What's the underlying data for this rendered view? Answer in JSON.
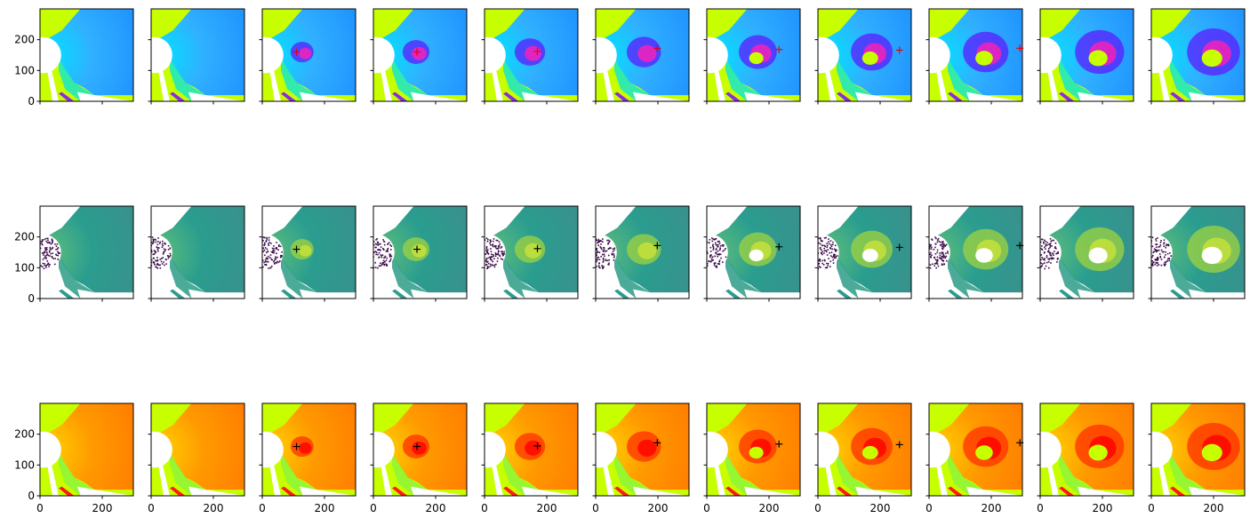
{
  "chart_data": {
    "type": "heatmap",
    "layout": {
      "rows": 3,
      "cols": 11
    },
    "x_axis": {
      "range": [
        0,
        300
      ],
      "ticks": [
        "0",
        "200"
      ],
      "tick_values": [
        0,
        200
      ]
    },
    "y_axis": {
      "range": [
        0,
        300
      ],
      "ticks": [
        "0",
        "100",
        "200"
      ],
      "tick_values": [
        0,
        100,
        200
      ]
    },
    "rows": [
      {
        "colormap": "gsm-hue",
        "marker_color": "#e8000b",
        "background_color": "#c8ff00"
      },
      {
        "colormap": "viridis",
        "marker_color": "#000000",
        "background_color": "#ffffff"
      },
      {
        "colormap": "rainbow-warm",
        "marker_color": "#000000",
        "background_color": "#c8ff00"
      }
    ],
    "markers": [
      null,
      null,
      {
        "x": 110,
        "y": 160
      },
      {
        "x": 140,
        "y": 160
      },
      {
        "x": 170,
        "y": 162
      },
      {
        "x": 198,
        "y": 172
      },
      {
        "x": 232,
        "y": 168
      },
      {
        "x": 262,
        "y": 166
      },
      {
        "x": 292,
        "y": 172
      },
      null,
      null
    ],
    "evolution_steps": 11
  }
}
